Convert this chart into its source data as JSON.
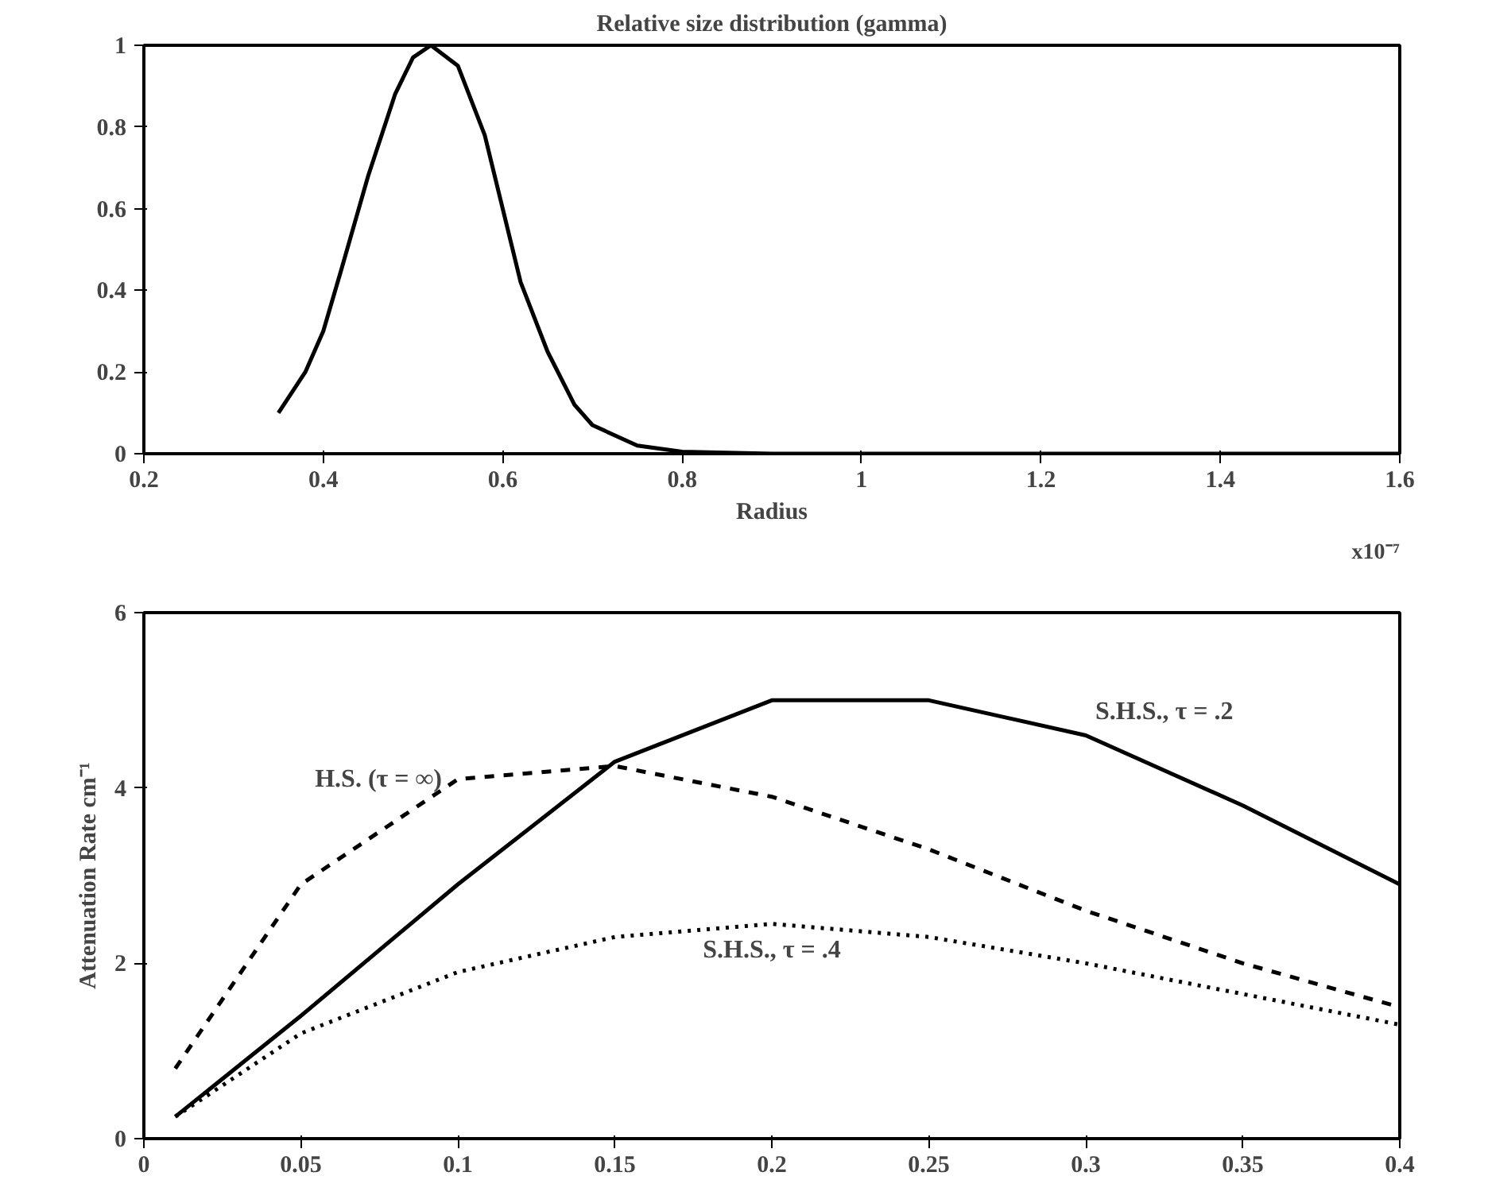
{
  "chart_data": [
    {
      "type": "line",
      "title": "Relative size distribution (gamma)",
      "xlabel": "Radius",
      "annotations": [
        "x10⁻⁷"
      ],
      "x": [
        0.35,
        0.38,
        0.4,
        0.42,
        0.45,
        0.48,
        0.5,
        0.52,
        0.55,
        0.58,
        0.6,
        0.62,
        0.65,
        0.68,
        0.7,
        0.75,
        0.8,
        0.9,
        1.0,
        1.2,
        1.4,
        1.6
      ],
      "series": [
        {
          "color": "#000000",
          "values": [
            0.1,
            0.2,
            0.3,
            0.45,
            0.68,
            0.88,
            0.97,
            1.0,
            0.95,
            0.78,
            0.6,
            0.42,
            0.25,
            0.12,
            0.07,
            0.02,
            0.005,
            0,
            0,
            0,
            0,
            0
          ]
        }
      ],
      "xlim": [
        0.2,
        1.6
      ],
      "xticks": [
        0.2,
        0.4,
        0.6,
        0.8,
        1,
        1.2,
        1.4,
        1.6
      ],
      "ylim": [
        0,
        1
      ],
      "yticks": [
        0,
        0.2,
        0.4,
        0.6,
        0.8,
        1
      ]
    },
    {
      "type": "line",
      "ylabel": "Attenuation Rate cm⁻¹",
      "x": [
        0.01,
        0.05,
        0.1,
        0.15,
        0.2,
        0.25,
        0.3,
        0.35,
        0.4
      ],
      "series": [
        {
          "name": "S.H.S., τ = .2",
          "color": "#000000",
          "line_style": "solid",
          "values": [
            0.25,
            1.4,
            2.9,
            4.3,
            5.0,
            5.0,
            4.6,
            3.8,
            2.9
          ]
        },
        {
          "name": "H.S. (τ = ∞)",
          "color": "#000000",
          "line_style": "dashed",
          "values": [
            0.8,
            2.9,
            4.1,
            4.25,
            3.9,
            3.3,
            2.6,
            2.0,
            1.5
          ]
        },
        {
          "name": "S.H.S., τ = .4",
          "color": "#000000",
          "line_style": "dotted",
          "values": [
            0.25,
            1.2,
            1.9,
            2.3,
            2.45,
            2.3,
            2.0,
            1.65,
            1.3
          ]
        }
      ],
      "xlim": [
        0,
        0.4
      ],
      "xticks": [
        0,
        0.05,
        0.1,
        0.15,
        0.2,
        0.25,
        0.3,
        0.35,
        0.4
      ],
      "ylim": [
        0,
        6
      ],
      "yticks": [
        0,
        2,
        4,
        6
      ]
    }
  ]
}
